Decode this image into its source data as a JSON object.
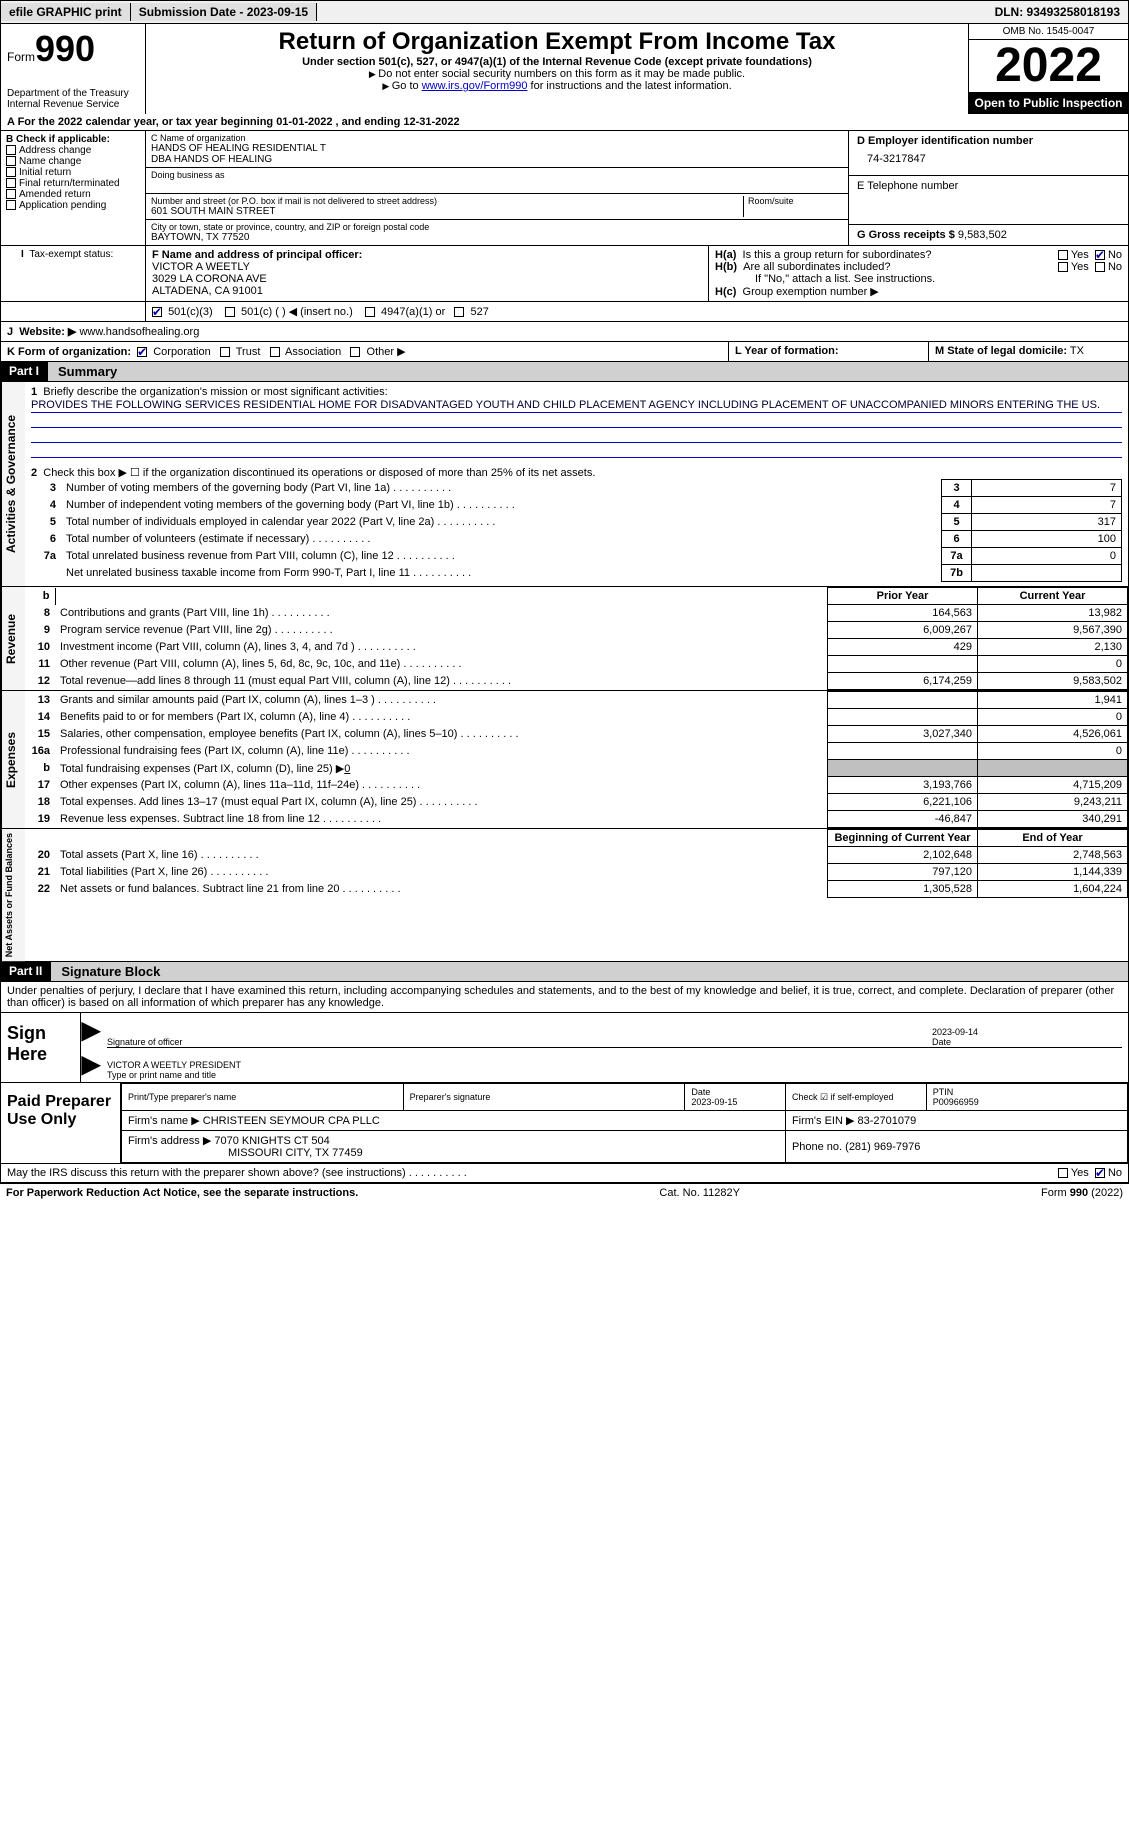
{
  "topbar": {
    "efile": "efile GRAPHIC print",
    "submission_label": "Submission Date - 2023-09-15",
    "dln_label": "DLN: 93493258018193"
  },
  "header": {
    "form_label": "Form",
    "form_num": "990",
    "dept": "Department of the Treasury\nInternal Revenue Service",
    "title": "Return of Organization Exempt From Income Tax",
    "sub1": "Under section 501(c), 527, or 4947(a)(1) of the Internal Revenue Code (except private foundations)",
    "sub2": "Do not enter social security numbers on this form as it may be made public.",
    "sub3_pre": "Go to ",
    "sub3_link": "www.irs.gov/Form990",
    "sub3_post": " for instructions and the latest information.",
    "omb": "OMB No. 1545-0047",
    "year": "2022",
    "inspect": "Open to Public Inspection"
  },
  "rowA": "A For the 2022 calendar year, or tax year beginning 01-01-2022    , and ending 12-31-2022",
  "B": {
    "label": "B Check if applicable:",
    "opts": [
      "Address change",
      "Name change",
      "Initial return",
      "Final return/terminated",
      "Amended return",
      "Application pending"
    ]
  },
  "C": {
    "name_lab": "C Name of organization",
    "name1": "HANDS OF HEALING RESIDENTIAL T",
    "name2": "DBA HANDS OF HEALING",
    "dba_lab": "Doing business as",
    "addr_lab": "Number and street (or P.O. box if mail is not delivered to street address)",
    "room_lab": "Room/suite",
    "addr": "601 SOUTH MAIN STREET",
    "city_lab": "City or town, state or province, country, and ZIP or foreign postal code",
    "city": "BAYTOWN, TX  77520"
  },
  "D": {
    "lab": "D Employer identification number",
    "val": "74-3217847"
  },
  "E": {
    "lab": "E Telephone number",
    "val": ""
  },
  "G": {
    "lab": "G Gross receipts $",
    "val": "9,583,502"
  },
  "F": {
    "lab": "F  Name and address of principal officer:",
    "name": "VICTOR A WEETLY",
    "addr1": "3029 LA CORONA AVE",
    "addr2": "ALTADENA, CA  91001"
  },
  "H": {
    "a": "Is this a group return for subordinates?",
    "b": "Are all subordinates included?",
    "b_note": "If \"No,\" attach a list. See instructions.",
    "c": "Group exemption number ▶",
    "ha": "H(a)",
    "hb": "H(b)",
    "hc": "H(c)",
    "yes": "Yes",
    "no": "No"
  },
  "I": {
    "lab": "Tax-exempt status:",
    "o1": "501(c)(3)",
    "o2": "501(c) (   ) ◀ (insert no.)",
    "o3": "4947(a)(1) or",
    "o4": "527"
  },
  "J": {
    "lab": "Website: ▶",
    "val": "www.handsofhealing.org"
  },
  "K": {
    "lab": "K Form of organization:",
    "o1": "Corporation",
    "o2": "Trust",
    "o3": "Association",
    "o4": "Other ▶"
  },
  "L": {
    "lab": "L Year of formation:",
    "val": ""
  },
  "M": {
    "lab": "M State of legal domicile:",
    "val": "TX"
  },
  "parts": {
    "p1": "Part I",
    "p1t": "Summary",
    "p2": "Part II",
    "p2t": "Signature Block"
  },
  "summary": {
    "l1_lab": "Briefly describe the organization's mission or most significant activities:",
    "l1_txt": "PROVIDES THE FOLLOWING SERVICES RESIDENTIAL HOME FOR DISADVANTAGED YOUTH AND CHILD PLACEMENT AGENCY INCLUDING PLACEMENT OF UNACCOMPANIED MINORS ENTERING THE US.",
    "l2": "Check this box ▶ ☐  if the organization discontinued its operations or disposed of more than 25% of its net assets.",
    "rows_top": [
      {
        "n": "3",
        "d": "Number of voting members of the governing body (Part VI, line 1a)",
        "b": "3",
        "v": "7"
      },
      {
        "n": "4",
        "d": "Number of independent voting members of the governing body (Part VI, line 1b)",
        "b": "4",
        "v": "7"
      },
      {
        "n": "5",
        "d": "Total number of individuals employed in calendar year 2022 (Part V, line 2a)",
        "b": "5",
        "v": "317"
      },
      {
        "n": "6",
        "d": "Total number of volunteers (estimate if necessary)",
        "b": "6",
        "v": "100"
      },
      {
        "n": "7a",
        "d": "Total unrelated business revenue from Part VIII, column (C), line 12",
        "b": "7a",
        "v": "0"
      },
      {
        "n": "",
        "d": "Net unrelated business taxable income from Form 990-T, Part I, line 11",
        "b": "7b",
        "v": ""
      }
    ],
    "hdr_prior": "Prior Year",
    "hdr_curr": "Current Year",
    "revenue": [
      {
        "n": "8",
        "d": "Contributions and grants (Part VIII, line 1h)",
        "p": "164,563",
        "c": "13,982"
      },
      {
        "n": "9",
        "d": "Program service revenue (Part VIII, line 2g)",
        "p": "6,009,267",
        "c": "9,567,390"
      },
      {
        "n": "10",
        "d": "Investment income (Part VIII, column (A), lines 3, 4, and 7d )",
        "p": "429",
        "c": "2,130"
      },
      {
        "n": "11",
        "d": "Other revenue (Part VIII, column (A), lines 5, 6d, 8c, 9c, 10c, and 11e)",
        "p": "",
        "c": "0"
      },
      {
        "n": "12",
        "d": "Total revenue—add lines 8 through 11 (must equal Part VIII, column (A), line 12)",
        "p": "6,174,259",
        "c": "9,583,502"
      }
    ],
    "expenses": [
      {
        "n": "13",
        "d": "Grants and similar amounts paid (Part IX, column (A), lines 1–3 )",
        "p": "",
        "c": "1,941"
      },
      {
        "n": "14",
        "d": "Benefits paid to or for members (Part IX, column (A), line 4)",
        "p": "",
        "c": "0"
      },
      {
        "n": "15",
        "d": "Salaries, other compensation, employee benefits (Part IX, column (A), lines 5–10)",
        "p": "3,027,340",
        "c": "4,526,061"
      },
      {
        "n": "16a",
        "d": "Professional fundraising fees (Part IX, column (A), line 11e)",
        "p": "",
        "c": "0"
      },
      {
        "n": "b",
        "d": "Total fundraising expenses (Part IX, column (D), line 25) ▶0",
        "p": "shade",
        "c": "shade"
      },
      {
        "n": "17",
        "d": "Other expenses (Part IX, column (A), lines 11a–11d, 11f–24e)",
        "p": "3,193,766",
        "c": "4,715,209"
      },
      {
        "n": "18",
        "d": "Total expenses. Add lines 13–17 (must equal Part IX, column (A), line 25)",
        "p": "6,221,106",
        "c": "9,243,211"
      },
      {
        "n": "19",
        "d": "Revenue less expenses. Subtract line 18 from line 12",
        "p": "-46,847",
        "c": "340,291"
      }
    ],
    "hdr_boy": "Beginning of Current Year",
    "hdr_eoy": "End of Year",
    "net": [
      {
        "n": "20",
        "d": "Total assets (Part X, line 16)",
        "p": "2,102,648",
        "c": "2,748,563"
      },
      {
        "n": "21",
        "d": "Total liabilities (Part X, line 26)",
        "p": "797,120",
        "c": "1,144,339"
      },
      {
        "n": "22",
        "d": "Net assets or fund balances. Subtract line 21 from line 20",
        "p": "1,305,528",
        "c": "1,604,224"
      }
    ],
    "vlab_act": "Activities & Governance",
    "vlab_rev": "Revenue",
    "vlab_exp": "Expenses",
    "vlab_net": "Net Assets or Fund Balances"
  },
  "sig": {
    "penalty": "Under penalties of perjury, I declare that I have examined this return, including accompanying schedules and statements, and to the best of my knowledge and belief, it is true, correct, and complete. Declaration of preparer (other than officer) is based on all information of which preparer has any knowledge.",
    "sign_here": "Sign Here",
    "sig_officer": "Signature of officer",
    "date": "Date",
    "date_val": "2023-09-14",
    "name_title": "VICTOR A WEETLY  PRESIDENT",
    "name_lab": "Type or print name and title",
    "paid": "Paid Preparer Use Only",
    "prep_name_lab": "Print/Type preparer's name",
    "prep_sig_lab": "Preparer's signature",
    "prep_date_lab": "Date",
    "prep_date": "2023-09-15",
    "self_emp": "Check ☑ if self-employed",
    "ptin_lab": "PTIN",
    "ptin": "P00966959",
    "firm_name_lab": "Firm's name    ▶",
    "firm_name": "CHRISTEEN SEYMOUR CPA PLLC",
    "firm_ein_lab": "Firm's EIN ▶",
    "firm_ein": "83-2701079",
    "firm_addr_lab": "Firm's address ▶",
    "firm_addr1": "7070 KNIGHTS CT 504",
    "firm_addr2": "MISSOURI CITY, TX  77459",
    "phone_lab": "Phone no.",
    "phone": "(281) 969-7976",
    "discuss": "May the IRS discuss this return with the preparer shown above? (see instructions)"
  },
  "footer": {
    "left": "For Paperwork Reduction Act Notice, see the separate instructions.",
    "mid": "Cat. No. 11282Y",
    "right": "Form 990 (2022)"
  }
}
